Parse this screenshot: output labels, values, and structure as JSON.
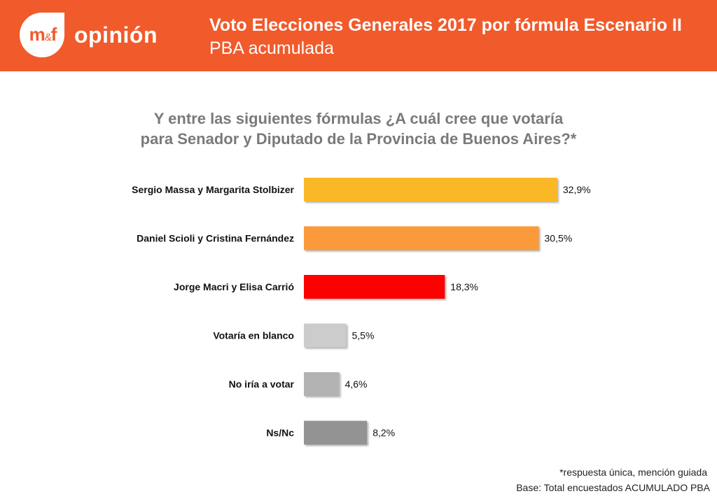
{
  "header": {
    "logo_mf": "m",
    "logo_amp": "&",
    "logo_f": "f",
    "logo_word": "opinión",
    "title": "Voto Elecciones Generales 2017 por fórmula Escenario II",
    "subtitle": "PBA acumulada"
  },
  "question": {
    "line1": "Y entre las siguientes fórmulas ¿A cuál cree que votaría",
    "line2": "para Senador y Diputado de la Provincia de Buenos Aires?*"
  },
  "chart_data": {
    "type": "bar",
    "orientation": "horizontal",
    "categories": [
      "Sergio Massa y Margarita Stolbizer",
      "Daniel Scioli y Cristina Fernández",
      "Jorge Macri y Elisa Carrió",
      "Votaría en blanco",
      "No iría a votar",
      "Ns/Nc"
    ],
    "values": [
      32.9,
      30.5,
      18.3,
      5.5,
      4.6,
      8.2
    ],
    "value_labels": [
      "32,9%",
      "30,5%",
      "18,3%",
      "5,5%",
      "4,6%",
      "8,2%"
    ],
    "colors": [
      "#fbb827",
      "#fb9a3a",
      "#fd0000",
      "#cccccc",
      "#b3b3b3",
      "#939393"
    ],
    "xlim": [
      0,
      40
    ],
    "grid": false,
    "legend": "none"
  },
  "footer": {
    "note": "*respuesta única, mención guiada",
    "base": "Base: Total encuestados ACUMULADO PBA"
  }
}
